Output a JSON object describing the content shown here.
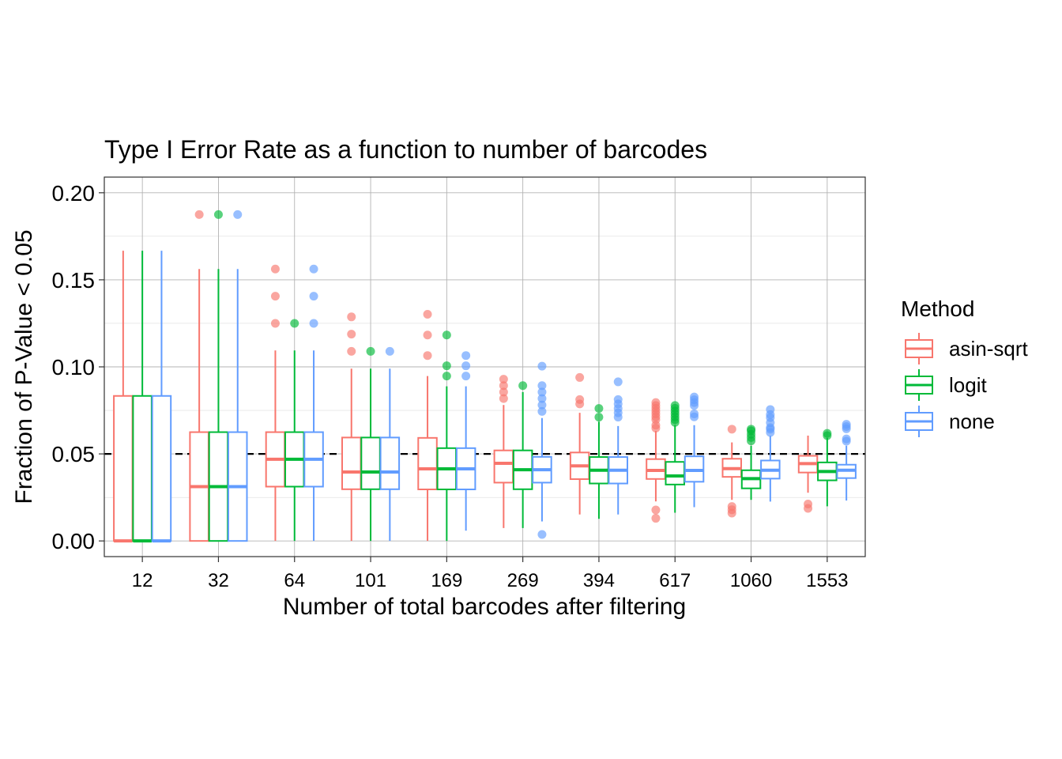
{
  "chart_data": {
    "type": "boxplot",
    "title": "Type I Error Rate as a function to number of barcodes",
    "xlabel": "Number of total barcodes after filtering",
    "ylabel": "Fraction of P-Value < 0.05",
    "ylim": [
      -0.009,
      0.209
    ],
    "yticks": [
      0.0,
      0.05,
      0.1,
      0.15,
      0.2
    ],
    "ytick_labels": [
      "0.00",
      "0.05",
      "0.10",
      "0.15",
      "0.20"
    ],
    "grid": true,
    "legend_title": "Method",
    "legend_position": "right",
    "reference_line": {
      "y": 0.05,
      "style": "dashed"
    },
    "categories": [
      "12",
      "32",
      "64",
      "101",
      "169",
      "269",
      "394",
      "617",
      "1060",
      "1553"
    ],
    "series": [
      {
        "name": "asin-sqrt",
        "color": "#F8766D",
        "boxes": [
          {
            "min": 0.0,
            "q1": 0.0,
            "median": 0.0,
            "q3": 0.0833,
            "max": 0.1667,
            "outliers": []
          },
          {
            "min": 0.0,
            "q1": 0.0,
            "median": 0.0312,
            "q3": 0.0625,
            "max": 0.1562,
            "outliers": [
              0.1875
            ]
          },
          {
            "min": 0.0,
            "q1": 0.0312,
            "median": 0.0469,
            "q3": 0.0625,
            "max": 0.1094,
            "outliers": [
              0.125,
              0.1406,
              0.1562
            ]
          },
          {
            "min": 0.0,
            "q1": 0.0297,
            "median": 0.0396,
            "q3": 0.0594,
            "max": 0.099,
            "outliers": [
              0.1089,
              0.1188,
              0.1287
            ]
          },
          {
            "min": 0.0,
            "q1": 0.0296,
            "median": 0.0414,
            "q3": 0.0592,
            "max": 0.0947,
            "outliers": [
              0.1065,
              0.1183,
              0.1302
            ]
          },
          {
            "min": 0.0074,
            "q1": 0.0335,
            "median": 0.0446,
            "q3": 0.052,
            "max": 0.0781,
            "outliers": [
              0.0818,
              0.0855,
              0.0892,
              0.0929
            ]
          },
          {
            "min": 0.0152,
            "q1": 0.0355,
            "median": 0.0431,
            "q3": 0.0508,
            "max": 0.0736,
            "outliers": [
              0.0787,
              0.0812,
              0.0939
            ]
          },
          {
            "min": 0.0227,
            "q1": 0.0356,
            "median": 0.0405,
            "q3": 0.047,
            "max": 0.0632,
            "outliers": [
              0.013,
              0.0178,
              0.0648,
              0.0665,
              0.0697,
              0.0713,
              0.073,
              0.0746,
              0.0762,
              0.0778,
              0.0795
            ]
          },
          {
            "min": 0.0236,
            "q1": 0.0368,
            "median": 0.0415,
            "q3": 0.0472,
            "max": 0.0566,
            "outliers": [
              0.016,
              0.0179,
              0.0198,
              0.0642
            ]
          },
          {
            "min": 0.0277,
            "q1": 0.0393,
            "median": 0.0444,
            "q3": 0.0489,
            "max": 0.0605,
            "outliers": [
              0.0187,
              0.0212
            ]
          }
        ]
      },
      {
        "name": "logit",
        "color": "#00BA38",
        "boxes": [
          {
            "min": 0.0,
            "q1": 0.0,
            "median": 0.0,
            "q3": 0.0833,
            "max": 0.1667,
            "outliers": []
          },
          {
            "min": 0.0,
            "q1": 0.0,
            "median": 0.0312,
            "q3": 0.0625,
            "max": 0.1562,
            "outliers": [
              0.1875
            ]
          },
          {
            "min": 0.0,
            "q1": 0.0312,
            "median": 0.0469,
            "q3": 0.0625,
            "max": 0.1094,
            "outliers": [
              0.125
            ]
          },
          {
            "min": 0.0,
            "q1": 0.0297,
            "median": 0.0396,
            "q3": 0.0594,
            "max": 0.099,
            "outliers": [
              0.1089
            ]
          },
          {
            "min": 0.0,
            "q1": 0.0296,
            "median": 0.0414,
            "q3": 0.0533,
            "max": 0.0888,
            "outliers": [
              0.0947,
              0.1006,
              0.1183
            ]
          },
          {
            "min": 0.0074,
            "q1": 0.0297,
            "median": 0.0409,
            "q3": 0.052,
            "max": 0.0855,
            "outliers": [
              0.0892
            ]
          },
          {
            "min": 0.0127,
            "q1": 0.033,
            "median": 0.0406,
            "q3": 0.0482,
            "max": 0.0685,
            "outliers": [
              0.0711,
              0.0761
            ]
          },
          {
            "min": 0.0162,
            "q1": 0.0324,
            "median": 0.0373,
            "q3": 0.0454,
            "max": 0.0665,
            "outliers": [
              0.0681,
              0.0697,
              0.0713,
              0.073,
              0.0746,
              0.0762,
              0.0778
            ]
          },
          {
            "min": 0.0236,
            "q1": 0.0302,
            "median": 0.0358,
            "q3": 0.0406,
            "max": 0.0547,
            "outliers": [
              0.0575,
              0.0594,
              0.0613,
              0.0632,
              0.0642
            ]
          },
          {
            "min": 0.0199,
            "q1": 0.0348,
            "median": 0.0399,
            "q3": 0.0451,
            "max": 0.0592,
            "outliers": [
              0.0605,
              0.0618
            ]
          }
        ]
      },
      {
        "name": "none",
        "color": "#619CFF",
        "boxes": [
          {
            "min": 0.0,
            "q1": 0.0,
            "median": 0.0,
            "q3": 0.0833,
            "max": 0.1667,
            "outliers": []
          },
          {
            "min": 0.0,
            "q1": 0.0,
            "median": 0.0312,
            "q3": 0.0625,
            "max": 0.1562,
            "outliers": [
              0.1875
            ]
          },
          {
            "min": 0.0,
            "q1": 0.0312,
            "median": 0.0469,
            "q3": 0.0625,
            "max": 0.1094,
            "outliers": [
              0.125,
              0.1406,
              0.1562
            ]
          },
          {
            "min": 0.0,
            "q1": 0.0297,
            "median": 0.0396,
            "q3": 0.0594,
            "max": 0.099,
            "outliers": [
              0.1089
            ]
          },
          {
            "min": 0.0059,
            "q1": 0.0296,
            "median": 0.0414,
            "q3": 0.0533,
            "max": 0.0888,
            "outliers": [
              0.0947,
              0.1006,
              0.1065
            ]
          },
          {
            "min": 0.0112,
            "q1": 0.0335,
            "median": 0.0409,
            "q3": 0.0483,
            "max": 0.0706,
            "outliers": [
              0.0037,
              0.0744,
              0.0781,
              0.0818,
              0.0855,
              0.0892,
              0.1004
            ]
          },
          {
            "min": 0.0152,
            "q1": 0.033,
            "median": 0.0406,
            "q3": 0.0482,
            "max": 0.066,
            "outliers": [
              0.0711,
              0.0736,
              0.0761,
              0.0787,
              0.0812,
              0.0914
            ]
          },
          {
            "min": 0.0194,
            "q1": 0.034,
            "median": 0.0405,
            "q3": 0.0486,
            "max": 0.0665,
            "outliers": [
              0.0713,
              0.073,
              0.0778,
              0.0795,
              0.0811,
              0.0827
            ]
          },
          {
            "min": 0.0226,
            "q1": 0.0358,
            "median": 0.0406,
            "q3": 0.0462,
            "max": 0.0604,
            "outliers": [
              0.0623,
              0.0642,
              0.0651,
              0.0679,
              0.0708,
              0.0726,
              0.0755
            ]
          },
          {
            "min": 0.0232,
            "q1": 0.0361,
            "median": 0.0406,
            "q3": 0.0438,
            "max": 0.0547,
            "outliers": [
              0.0573,
              0.0586,
              0.0644,
              0.0657,
              0.067
            ]
          }
        ]
      }
    ]
  }
}
